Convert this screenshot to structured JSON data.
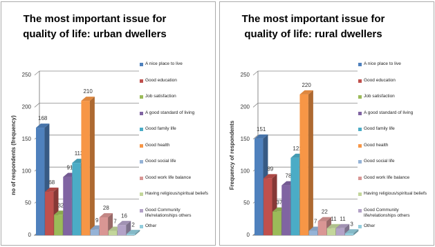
{
  "chart_data": [
    {
      "type": "bar",
      "title": "The most important issue for quality of life: urban dwellers",
      "y_label": "no of respondents (frequency)",
      "categories": [
        "A nice place to live",
        "Good education",
        "Job satisfaction",
        "A good standard of living",
        "Good family life",
        "Good health",
        "Good social life",
        "Good work life balance",
        "Having religious/spiritual beliefs",
        "Good Community life/relationships others",
        "Other"
      ],
      "values": [
        168,
        68,
        32,
        91,
        113,
        210,
        9,
        28,
        7,
        16,
        2
      ],
      "colors": [
        "#4f81bd",
        "#c0504d",
        "#9bbb59",
        "#8064a2",
        "#4bacc6",
        "#f79646",
        "#95b3d7",
        "#d99694",
        "#c3d69b",
        "#b3a2c7",
        "#93cddd"
      ],
      "ylim": [
        0,
        250
      ],
      "yticks": [
        0,
        50,
        100,
        150,
        200,
        250
      ],
      "grid": true
    },
    {
      "type": "bar",
      "title": "The most important issue for quality of life: rural dwellers",
      "y_label": "Frequency of respondents",
      "categories": [
        "A nice place to live",
        "Good education",
        "Job satisfaction",
        "A good standard of living",
        "Good family life",
        "Good health",
        "Good social life",
        "Good work life balance",
        "Having religious/spiritual beliefs",
        "Good Community life/relationships others",
        "Other"
      ],
      "values": [
        151,
        89,
        37,
        78,
        121,
        220,
        7,
        22,
        11,
        11,
        3
      ],
      "colors": [
        "#4f81bd",
        "#c0504d",
        "#9bbb59",
        "#8064a2",
        "#4bacc6",
        "#f79646",
        "#95b3d7",
        "#d99694",
        "#c3d69b",
        "#b3a2c7",
        "#93cddd"
      ],
      "ylim": [
        0,
        250
      ],
      "yticks": [
        0,
        50,
        100,
        150,
        200,
        250
      ],
      "grid": true
    }
  ]
}
